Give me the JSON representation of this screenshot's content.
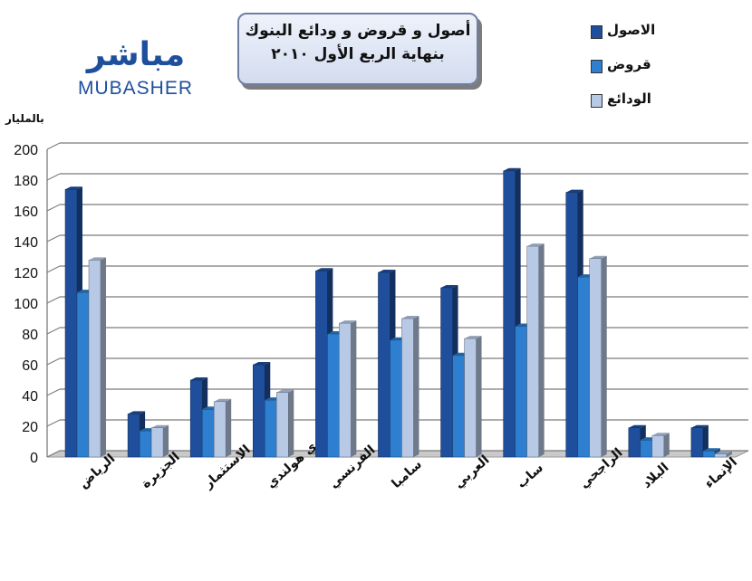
{
  "title": {
    "line1": "أصول و قروض و ودائع البنوك",
    "line2": "بنهاية الربع الأول ٢٠١٠"
  },
  "logo": {
    "arabic": "مباشر",
    "english": "MUBASHER"
  },
  "unit_label": "بالمليار",
  "colors": {
    "assets": "#1f4f9c",
    "loans": "#2e7fd0",
    "deposits": "#b8c9e6",
    "grid": "#7a7a7a",
    "floor": "#c9c9c9"
  },
  "chart_data": {
    "type": "bar",
    "title": "أصول و قروض و ودائع البنوك بنهاية الربع الأول ٢٠١٠",
    "ylabel": "بالمليار",
    "xlabel": "",
    "ylim": [
      0,
      200
    ],
    "yticks": [
      0,
      20,
      40,
      60,
      80,
      100,
      120,
      140,
      160,
      180,
      200
    ],
    "grid": true,
    "legend_position": "top-right",
    "categories": [
      "الرياض",
      "الجزيرة",
      "الاستثمار",
      "سعودي هولندي",
      "السعودي الفرنسي",
      "سامبا",
      "العربي",
      "ساب",
      "الراجحي",
      "البلاد",
      "الإنماء"
    ],
    "series": [
      {
        "name": "الاصول",
        "values": [
          174,
          28,
          50,
          60,
          121,
          120,
          110,
          186,
          172,
          19,
          19
        ]
      },
      {
        "name": "قروض",
        "values": [
          107,
          17,
          31,
          37,
          80,
          76,
          66,
          85,
          117,
          11,
          4
        ]
      },
      {
        "name": "الودائع",
        "values": [
          128,
          19,
          36,
          42,
          87,
          90,
          77,
          137,
          129,
          14,
          2
        ]
      }
    ]
  }
}
